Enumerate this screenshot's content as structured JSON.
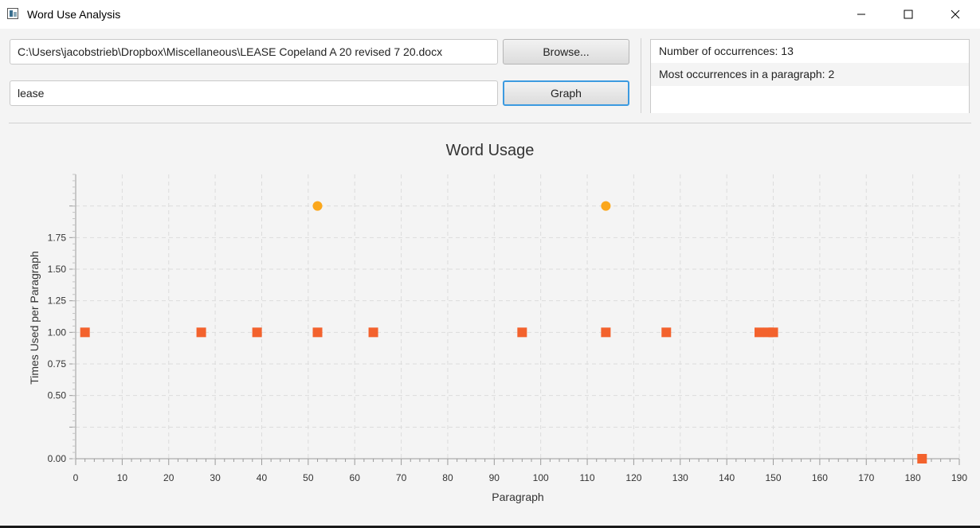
{
  "window": {
    "title": "Word Use Analysis",
    "controls": [
      "minimize-icon",
      "maximize-icon",
      "close-icon"
    ]
  },
  "form": {
    "file_path_value": "C:\\Users\\jacobstrieb\\Dropbox\\Miscellaneous\\LEASE Copeland A 20 revised 7 20.docx",
    "browse_label": "Browse...",
    "word_value": "lease",
    "graph_label": "Graph"
  },
  "stats": [
    "Number of occurrences: 13",
    "Most occurrences in a paragraph: 2"
  ],
  "colors": {
    "series_1": "#f3622d",
    "series_2": "#fba71b",
    "default_button_focus": "#3c9ae0"
  },
  "chart_data": {
    "type": "scatter",
    "title": "Word Usage",
    "xlabel": "Paragraph",
    "ylabel": "Times Used per Paragraph",
    "xlim": [
      0,
      190
    ],
    "ylim": [
      0,
      2.25
    ],
    "x_ticks": [
      0,
      10,
      20,
      30,
      40,
      50,
      60,
      70,
      80,
      90,
      100,
      110,
      120,
      130,
      140,
      150,
      160,
      170,
      180,
      190
    ],
    "y_tick_labels": [
      {
        "value": 0.0,
        "label": "0.00"
      },
      {
        "value": 0.5,
        "label": "0.50"
      },
      {
        "value": 0.75,
        "label": "0.75"
      },
      {
        "value": 1.0,
        "label": "1.00"
      },
      {
        "value": 1.25,
        "label": "1.25"
      },
      {
        "value": 1.5,
        "label": "1.50"
      },
      {
        "value": 1.75,
        "label": "1.75"
      }
    ],
    "y_grid_extra": [
      0.25,
      2.0
    ],
    "grid": true,
    "series": [
      {
        "marker": "square",
        "color": "#f3622d",
        "points": [
          [
            2,
            1
          ],
          [
            27,
            1
          ],
          [
            39,
            1
          ],
          [
            52,
            1
          ],
          [
            64,
            1
          ],
          [
            96,
            1
          ],
          [
            114,
            1
          ],
          [
            127,
            1
          ],
          [
            147,
            1
          ],
          [
            149,
            1
          ],
          [
            150,
            1
          ],
          [
            182,
            0
          ]
        ]
      },
      {
        "marker": "circle",
        "color": "#fba71b",
        "points": [
          [
            52,
            2
          ],
          [
            114,
            2
          ]
        ]
      }
    ]
  }
}
